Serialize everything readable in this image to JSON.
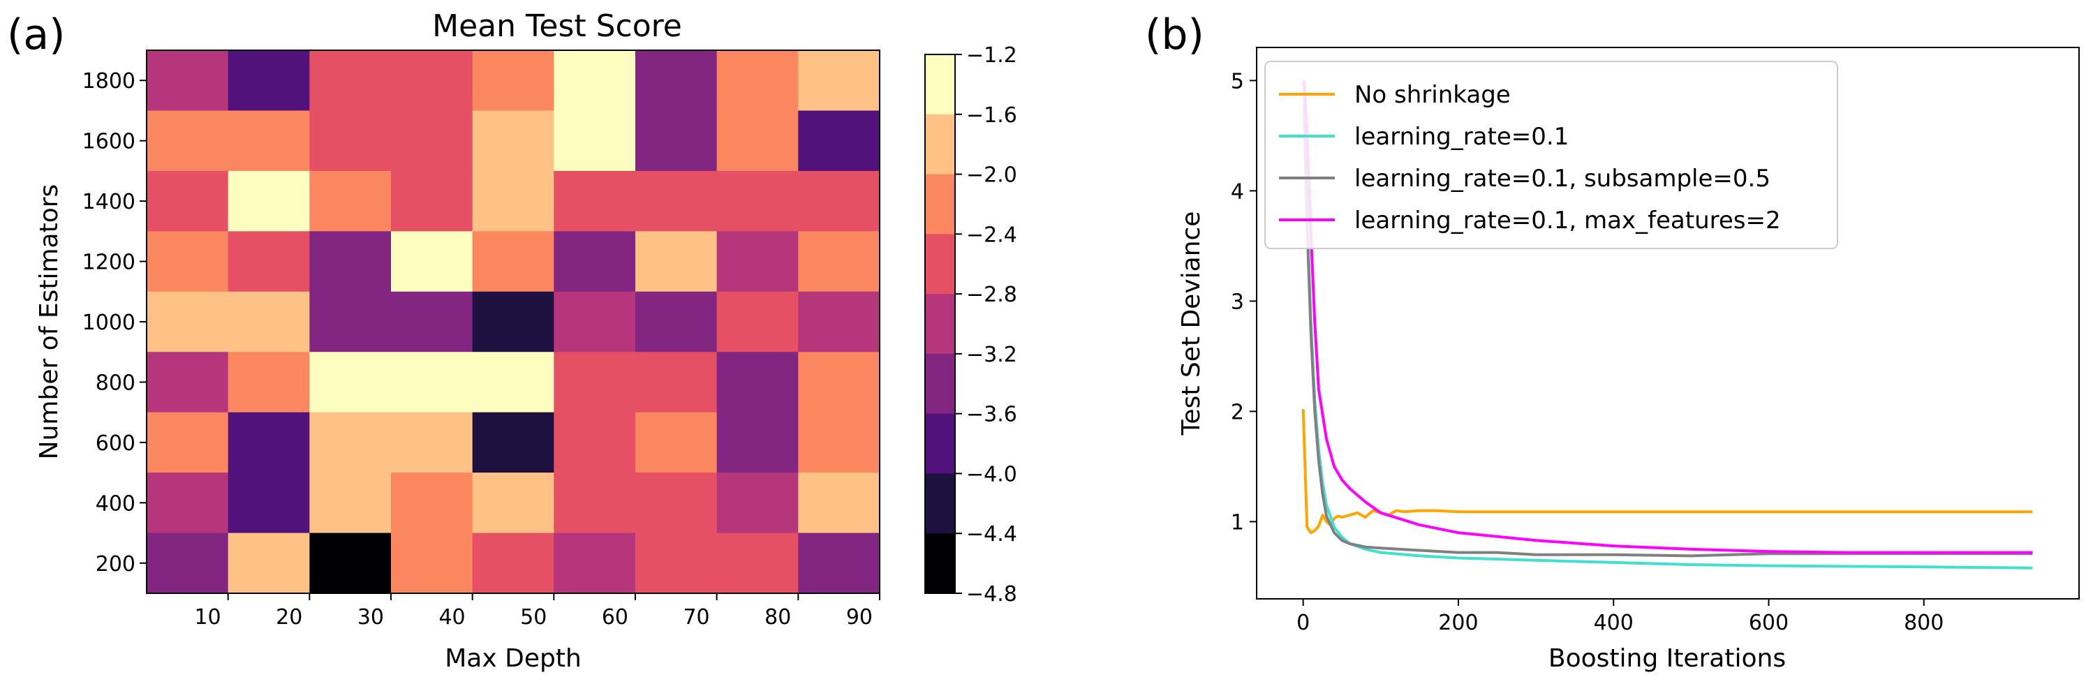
{
  "panel_labels": [
    "(a)",
    "(b)"
  ],
  "chart_data": [
    {
      "type": "heatmap",
      "title": "Mean Test Score",
      "xlabel": "Max Depth",
      "ylabel": "Number of Estimators",
      "x_ticks": [
        10,
        20,
        30,
        40,
        50,
        60,
        70,
        80,
        90
      ],
      "y_ticks": [
        200,
        400,
        600,
        800,
        1000,
        1200,
        1400,
        1600,
        1800
      ],
      "colorbar_ticks": [
        -1.2,
        -1.6,
        -2.0,
        -2.4,
        -2.8,
        -3.2,
        -3.6,
        -4.0,
        -4.4,
        -4.8
      ],
      "colorbar_colors": [
        "#fcfdbf",
        "#fec287",
        "#fb8761",
        "#e55064",
        "#b5367a",
        "#832681",
        "#51127c",
        "#1e1140",
        "#000004"
      ],
      "vmin": -4.8,
      "vmax": -1.2,
      "rows_top_to_bottom": [
        1800,
        1600,
        1400,
        1200,
        1000,
        800,
        600,
        400,
        200
      ],
      "values": [
        [
          -3.0,
          -3.8,
          -2.6,
          -2.6,
          -2.2,
          -1.4,
          -3.4,
          -2.2,
          -1.8
        ],
        [
          -2.2,
          -2.2,
          -2.6,
          -2.6,
          -1.8,
          -1.4,
          -3.4,
          -2.2,
          -3.8
        ],
        [
          -2.6,
          -1.4,
          -2.2,
          -2.6,
          -1.8,
          -2.6,
          -2.6,
          -2.6,
          -2.6
        ],
        [
          -2.2,
          -2.6,
          -3.4,
          -1.4,
          -2.2,
          -3.4,
          -1.8,
          -3.0,
          -2.2
        ],
        [
          -1.8,
          -1.8,
          -3.4,
          -3.4,
          -4.2,
          -3.0,
          -3.4,
          -2.6,
          -3.0
        ],
        [
          -3.0,
          -2.2,
          -1.4,
          -1.4,
          -1.4,
          -2.6,
          -2.6,
          -3.4,
          -2.2
        ],
        [
          -2.2,
          -3.8,
          -1.8,
          -1.8,
          -4.2,
          -2.6,
          -2.2,
          -3.4,
          -2.2
        ],
        [
          -3.0,
          -3.8,
          -1.8,
          -2.2,
          -1.8,
          -2.6,
          -2.6,
          -3.0,
          -1.8
        ],
        [
          -3.4,
          -1.8,
          -4.8,
          -2.2,
          -2.6,
          -3.0,
          -2.6,
          -2.6,
          -3.4
        ]
      ]
    },
    {
      "type": "line",
      "xlabel": "Boosting Iterations",
      "ylabel": "Test Set Deviance",
      "xlim": [
        -60,
        1000
      ],
      "ylim": [
        0.3,
        5.3
      ],
      "x_ticks": [
        0,
        200,
        400,
        600,
        800
      ],
      "y_ticks": [
        1,
        2,
        3,
        4,
        5
      ],
      "legend_position": "top-left",
      "series": [
        {
          "name": "No shrinkage",
          "color": "#ffa500",
          "x": [
            0,
            5,
            10,
            15,
            20,
            25,
            30,
            35,
            40,
            45,
            50,
            60,
            70,
            80,
            90,
            100,
            110,
            120,
            130,
            150,
            170,
            200,
            300,
            400,
            600,
            800,
            940
          ],
          "y": [
            2.02,
            0.95,
            0.9,
            0.92,
            0.96,
            1.06,
            1.0,
            0.97,
            1.03,
            1.05,
            1.04,
            1.06,
            1.08,
            1.04,
            1.1,
            1.08,
            1.06,
            1.1,
            1.09,
            1.1,
            1.1,
            1.09,
            1.09,
            1.09,
            1.09,
            1.09,
            1.09
          ]
        },
        {
          "name": "learning_rate=0.1",
          "color": "#40e0d0",
          "x": [
            1,
            5,
            10,
            15,
            20,
            25,
            30,
            40,
            50,
            60,
            80,
            100,
            150,
            200,
            300,
            400,
            500,
            600,
            800,
            940
          ],
          "y": [
            4.9,
            3.8,
            2.8,
            2.1,
            1.65,
            1.35,
            1.15,
            0.95,
            0.86,
            0.8,
            0.75,
            0.72,
            0.69,
            0.67,
            0.65,
            0.63,
            0.61,
            0.6,
            0.59,
            0.58
          ]
        },
        {
          "name": "learning_rate=0.1, subsample=0.5",
          "color": "#808080",
          "x": [
            1,
            5,
            10,
            15,
            20,
            25,
            30,
            40,
            50,
            60,
            80,
            100,
            150,
            200,
            250,
            300,
            400,
            500,
            600,
            700,
            800,
            940
          ],
          "y": [
            4.8,
            3.7,
            2.7,
            2.0,
            1.55,
            1.25,
            1.05,
            0.9,
            0.83,
            0.8,
            0.77,
            0.76,
            0.74,
            0.72,
            0.72,
            0.7,
            0.7,
            0.69,
            0.71,
            0.71,
            0.71,
            0.71
          ]
        },
        {
          "name": "learning_rate=0.1, max_features=2",
          "color": "#ff00ff",
          "x": [
            1,
            5,
            10,
            15,
            20,
            30,
            40,
            50,
            60,
            80,
            100,
            150,
            200,
            300,
            400,
            500,
            600,
            700,
            800,
            940
          ],
          "y": [
            5.0,
            4.5,
            3.6,
            2.8,
            2.2,
            1.75,
            1.5,
            1.38,
            1.3,
            1.18,
            1.08,
            0.97,
            0.9,
            0.83,
            0.78,
            0.75,
            0.73,
            0.72,
            0.72,
            0.72
          ]
        }
      ]
    }
  ]
}
